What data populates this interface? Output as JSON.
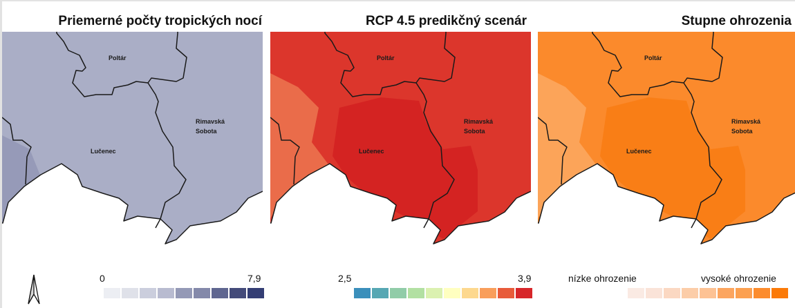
{
  "panels": [
    {
      "title": "Priemerné počty tropických nocí",
      "fill": "#aaaec6",
      "fill_dark": "#9195b4",
      "legend": {
        "min": "0",
        "max": "7,9",
        "colors": [
          "#eceef3",
          "#dfe1e9",
          "#cbcedd",
          "#b8bbd0",
          "#9499b6",
          "#8489aa",
          "#5f6690",
          "#444b7a",
          "#343e74"
        ]
      }
    },
    {
      "title": "RCP 4.5 predikčný scenár",
      "fill": "#dc362c",
      "fill_dark": "#d21f20",
      "fill_light": "#ec7550",
      "legend": {
        "min": "2,5",
        "max": "3,9",
        "colors": [
          "#3b8fbb",
          "#56a7b3",
          "#91cca8",
          "#b2e0a2",
          "#dbf1b0",
          "#ffffc0",
          "#fdd88e",
          "#f99e5b",
          "#e85b3a",
          "#d7262a"
        ]
      }
    },
    {
      "title": "Stupne ohrozenia",
      "fill": "#fb8a2c",
      "fill_dark": "#f97a12",
      "fill_light": "#fca862",
      "legend": {
        "min": "nízke ohrozenie",
        "max": "vysoké ohrozenie",
        "colors": [
          "#faeae3",
          "#fae3d8",
          "#fbd8c2",
          "#fccda8",
          "#fdc294",
          "#fca55f",
          "#fca050",
          "#fc8c2d",
          "#fb7a08"
        ]
      }
    }
  ],
  "labels": {
    "poltar": "Poltár",
    "rimavska": "Rimavská",
    "sobota": "Sobota",
    "lucenec": "Lučenec"
  },
  "north_arrow": "north-arrow-icon"
}
